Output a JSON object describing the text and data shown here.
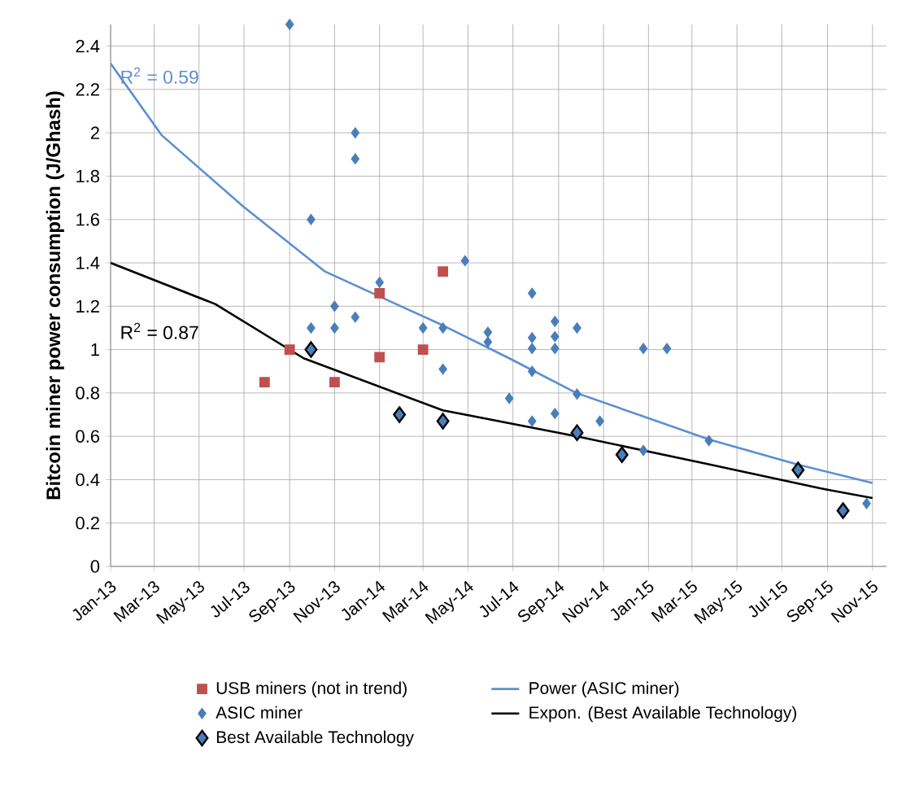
{
  "chart_data": {
    "type": "scatter",
    "ylabel": "Bitcoin miner power consumption (J/Ghash)",
    "xlim": [
      "2013-01-01",
      "2015-11-20"
    ],
    "ylim": [
      0,
      2.5
    ],
    "xticks": [
      {
        "value": "2013-01",
        "label": "Jan-13"
      },
      {
        "value": "2013-03",
        "label": "Mar-13"
      },
      {
        "value": "2013-05",
        "label": "May-13"
      },
      {
        "value": "2013-07",
        "label": "Jul-13"
      },
      {
        "value": "2013-09",
        "label": "Sep-13"
      },
      {
        "value": "2013-11",
        "label": "Nov-13"
      },
      {
        "value": "2014-01",
        "label": "Jan-14"
      },
      {
        "value": "2014-03",
        "label": "Mar-14"
      },
      {
        "value": "2014-05",
        "label": "May-14"
      },
      {
        "value": "2014-07",
        "label": "Jul-14"
      },
      {
        "value": "2014-09",
        "label": "Sep-14"
      },
      {
        "value": "2014-11",
        "label": "Nov-14"
      },
      {
        "value": "2015-01",
        "label": "Jan-15"
      },
      {
        "value": "2015-03",
        "label": "Mar-15"
      },
      {
        "value": "2015-05",
        "label": "May-15"
      },
      {
        "value": "2015-07",
        "label": "Jul-15"
      },
      {
        "value": "2015-09",
        "label": "Sep-15"
      },
      {
        "value": "2015-11",
        "label": "Nov-15"
      }
    ],
    "yticks": [
      0,
      0.2,
      0.4,
      0.6,
      0.8,
      1,
      1.2,
      1.4,
      1.6,
      1.8,
      2,
      2.2,
      2.4
    ],
    "grid": true,
    "legend": "bottom",
    "series": [
      {
        "name": "USB miners (not in trend)",
        "type": "scatter",
        "marker": "square",
        "color": "#c0504d",
        "x": [
          "2013-07-29",
          "2013-09-01",
          "2013-11-01",
          "2014-01-01",
          "2014-01-01",
          "2014-03-01",
          "2014-03-28"
        ],
        "values": [
          0.85,
          1.0,
          0.85,
          1.26,
          0.965,
          1.0,
          1.36
        ]
      },
      {
        "name": "Power (ASIC miner)",
        "type": "line",
        "marker": "none",
        "line_style": "solid",
        "color": "#5b8fd0",
        "x": [
          "2013-01-01",
          "2013-03-11",
          "2013-06-30",
          "2013-10-19",
          "2014-03-29",
          "2014-06-26",
          "2014-09-25",
          "2015-03-25",
          "2015-07-22",
          "2015-11-01"
        ],
        "values": [
          2.32,
          1.99,
          1.66,
          1.36,
          1.11,
          0.96,
          0.8,
          0.585,
          0.47,
          0.385
        ]
      },
      {
        "name": "ASIC miner",
        "type": "scatter",
        "marker": "diamond",
        "color": "#4a7ebb",
        "x": [
          "2013-09-01",
          "2013-09-30",
          "2013-09-30",
          "2013-11-01",
          "2013-11-01",
          "2013-11-29",
          "2013-11-29",
          "2013-11-29",
          "2014-01-01",
          "2014-03-01",
          "2014-03-28",
          "2014-03-28",
          "2014-04-27",
          "2014-05-28",
          "2014-05-28",
          "2014-06-26",
          "2014-07-27",
          "2014-07-27",
          "2014-07-27",
          "2014-07-27",
          "2014-07-27",
          "2014-08-27",
          "2014-08-27",
          "2014-08-27",
          "2014-08-27",
          "2014-09-26",
          "2014-09-26",
          "2014-10-27",
          "2014-12-25",
          "2015-01-26",
          "2014-12-25",
          "2015-03-24",
          "2015-10-24"
        ],
        "values": [
          2.5,
          1.6,
          1.1,
          1.2,
          1.1,
          2.0,
          1.88,
          1.15,
          1.31,
          1.1,
          1.1,
          0.91,
          1.41,
          1.08,
          1.035,
          0.775,
          1.26,
          1.055,
          1.005,
          0.9,
          0.67,
          1.13,
          1.06,
          1.005,
          0.705,
          1.1,
          0.795,
          0.67,
          1.005,
          1.005,
          0.535,
          0.58,
          0.29
        ]
      },
      {
        "name": "Expon. (Best Available Technology)",
        "type": "line",
        "marker": "none",
        "line_style": "solid",
        "color": "#000000",
        "x": [
          "2013-01-01",
          "2013-05-23",
          "2013-09-20",
          "2014-03-28",
          "2014-09-26",
          "2015-03-25",
          "2015-08-22",
          "2015-11-01"
        ],
        "values": [
          1.4,
          1.21,
          0.96,
          0.72,
          0.6,
          0.47,
          0.36,
          0.315
        ]
      },
      {
        "name": "Best Available Technology",
        "type": "scatter",
        "marker": "diamond",
        "color": "#4a7ebb",
        "x": [
          "2013-09-30",
          "2014-01-28",
          "2014-03-28",
          "2014-09-26",
          "2014-11-26",
          "2015-07-23",
          "2015-09-22"
        ],
        "values": [
          1.0,
          0.7,
          0.67,
          0.617,
          0.515,
          0.445,
          0.257
        ]
      }
    ],
    "annotations": [
      "R$^{2}$ = 0.59",
      "R$^{2}$ = 0.87"
    ]
  }
}
